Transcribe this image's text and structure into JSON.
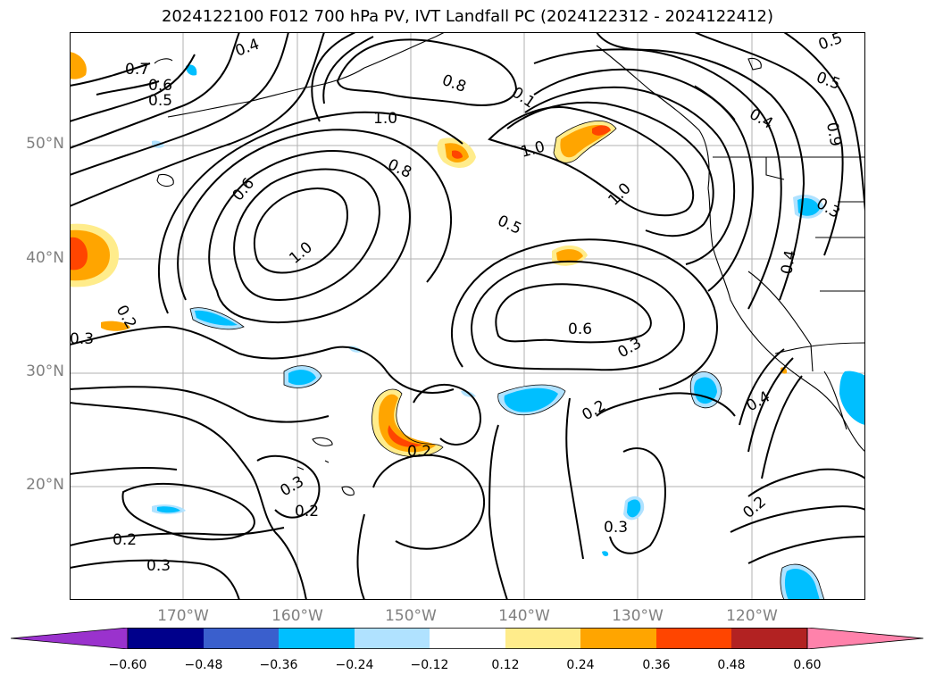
{
  "title": "2024122100 F012 700 hPa PV, IVT Landfall PC (2024122312 - 2024122412)",
  "lat_labels": [
    "50°N",
    "40°N",
    "30°N",
    "20°N"
  ],
  "lon_labels": [
    "170°W",
    "160°W",
    "150°W",
    "140°W",
    "130°W",
    "120°W"
  ],
  "contour_labels": [
    "0.7",
    "0.6",
    "0.5",
    "0.4",
    "0.8",
    "0.1",
    "1.0",
    "0.5",
    "0.4",
    "0.9",
    "1.0",
    "0.8",
    "0.6",
    "1.0",
    "1.0",
    "0.5",
    "0.3",
    "0.4",
    "0.2",
    "0.3",
    "0.6",
    "0.3",
    "0.2",
    "0.4",
    "0.2",
    "0.3",
    "0.2",
    "0.2",
    "0.3",
    "0.2",
    "0.3",
    "0.5"
  ],
  "colorbar": {
    "ticks": [
      "−0.60",
      "−0.48",
      "−0.36",
      "−0.24",
      "−0.12",
      "0.12",
      "0.24",
      "0.36",
      "0.48",
      "0.60"
    ],
    "colors": [
      "#9a32cd",
      "#00008b",
      "#3a5fcd",
      "#00bfff",
      "#b0e2ff",
      "#ffffff",
      "#ffec8b",
      "#ffa500",
      "#ff4500",
      "#b22222",
      "#ff82ab"
    ]
  },
  "colors": {
    "positive": "#ffa500",
    "negative": "#00bfff"
  }
}
